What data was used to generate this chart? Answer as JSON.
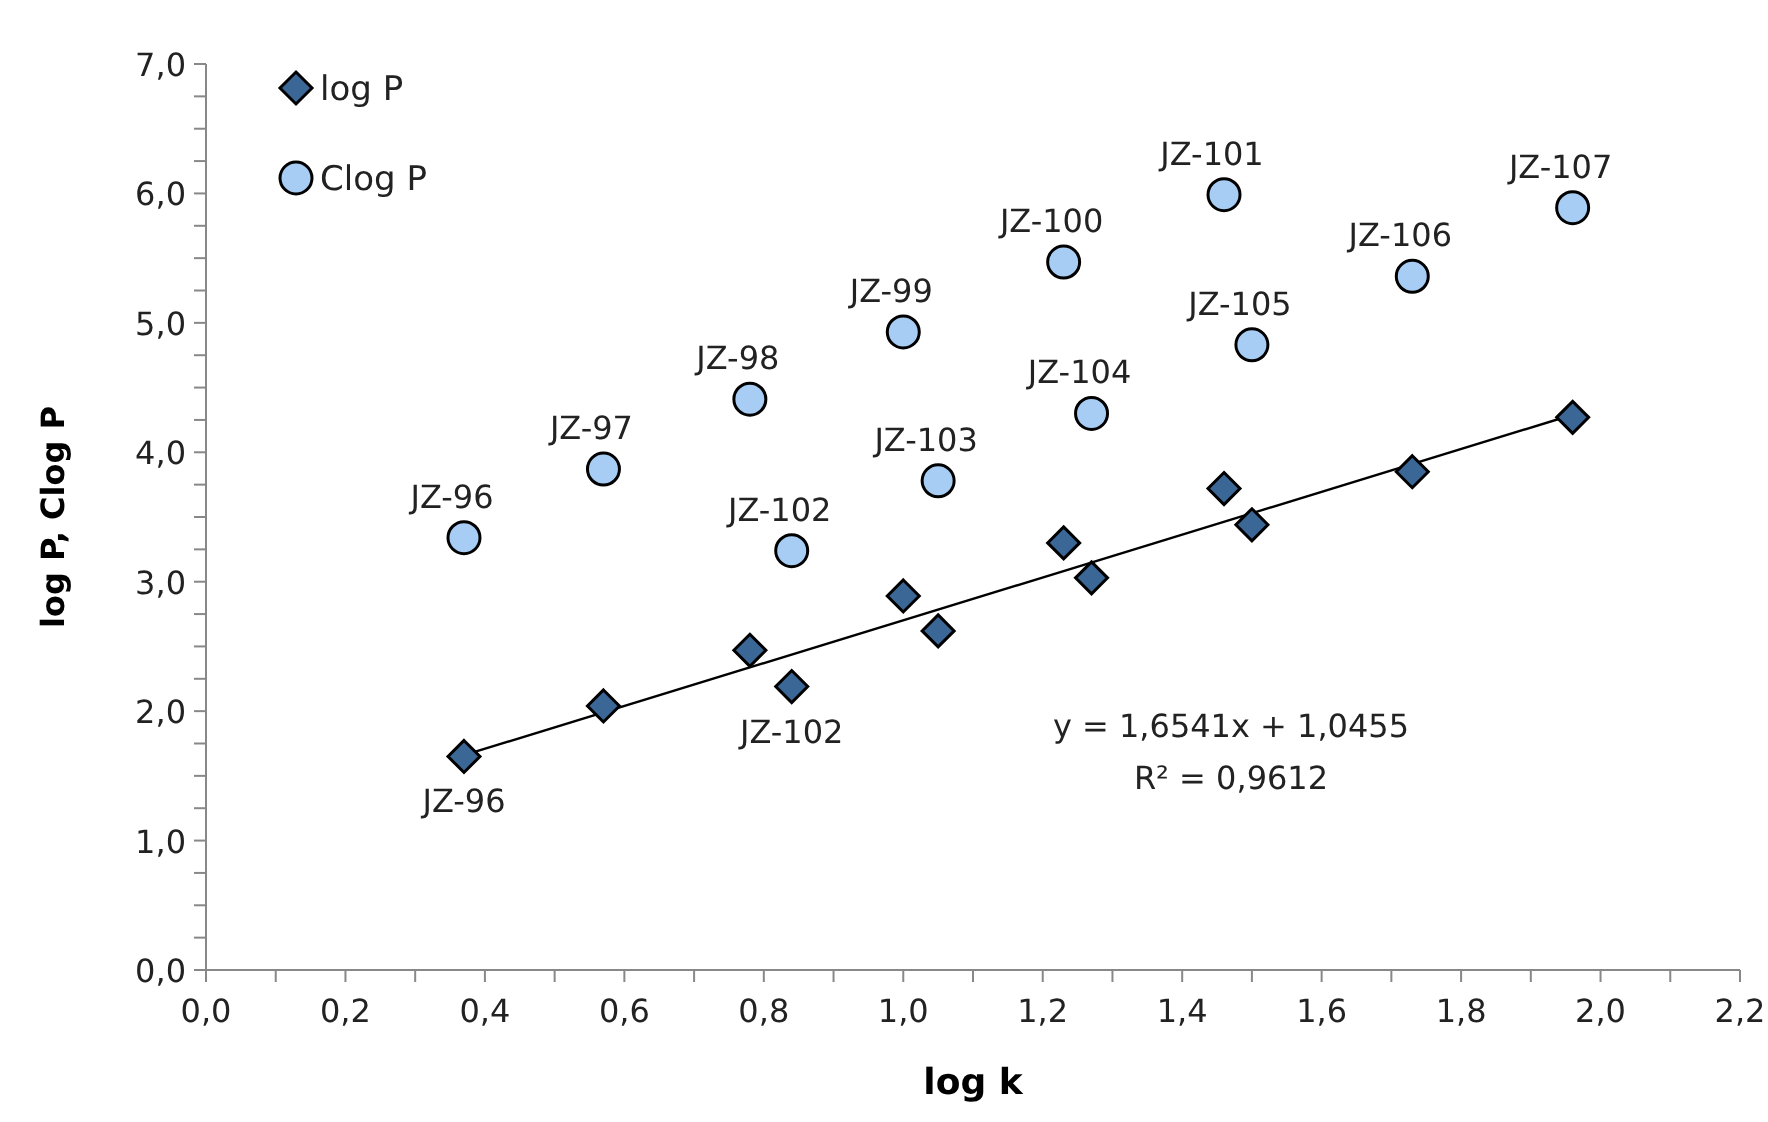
{
  "chart_data": {
    "type": "scatter",
    "xlabel": "log k",
    "ylabel": "log P, Clog P",
    "xlim": [
      0,
      2.2
    ],
    "xticks": [
      {
        "value": 0,
        "label": "0,0"
      },
      {
        "value": 0.1,
        "label": null
      },
      {
        "value": 0.2,
        "label": "0,2"
      },
      {
        "value": 0.3,
        "label": null
      },
      {
        "value": 0.4,
        "label": "0,4"
      },
      {
        "value": 0.5,
        "label": null
      },
      {
        "value": 0.6,
        "label": "0,6"
      },
      {
        "value": 0.7,
        "label": null
      },
      {
        "value": 0.8,
        "label": "0,8"
      },
      {
        "value": 0.9,
        "label": null
      },
      {
        "value": 1,
        "label": "1,0"
      },
      {
        "value": 1.1,
        "label": null
      },
      {
        "value": 1.2,
        "label": "1,2"
      },
      {
        "value": 1.3,
        "label": null
      },
      {
        "value": 1.4,
        "label": "1,4"
      },
      {
        "value": 1.5,
        "label": null
      },
      {
        "value": 1.6,
        "label": "1,6"
      },
      {
        "value": 1.7,
        "label": null
      },
      {
        "value": 1.8,
        "label": "1,8"
      },
      {
        "value": 1.9,
        "label": null
      },
      {
        "value": 2,
        "label": "2,0"
      },
      {
        "value": 2.1,
        "label": null
      },
      {
        "value": 2.2,
        "label": "2,2"
      }
    ],
    "ylim": [
      0,
      7
    ],
    "yticks": [
      {
        "value": 0,
        "label": "0,0"
      },
      {
        "value": 0.25,
        "label": null
      },
      {
        "value": 0.5,
        "label": null
      },
      {
        "value": 0.75,
        "label": null
      },
      {
        "value": 1,
        "label": "1,0"
      },
      {
        "value": 1.25,
        "label": null
      },
      {
        "value": 1.5,
        "label": null
      },
      {
        "value": 1.75,
        "label": null
      },
      {
        "value": 2,
        "label": "2,0"
      },
      {
        "value": 2.25,
        "label": null
      },
      {
        "value": 2.5,
        "label": null
      },
      {
        "value": 2.75,
        "label": null
      },
      {
        "value": 3,
        "label": "3,0"
      },
      {
        "value": 3.25,
        "label": null
      },
      {
        "value": 3.5,
        "label": null
      },
      {
        "value": 3.75,
        "label": null
      },
      {
        "value": 4,
        "label": "4,0"
      },
      {
        "value": 4.25,
        "label": null
      },
      {
        "value": 4.5,
        "label": null
      },
      {
        "value": 4.75,
        "label": null
      },
      {
        "value": 5,
        "label": "5,0"
      },
      {
        "value": 5.25,
        "label": null
      },
      {
        "value": 5.5,
        "label": null
      },
      {
        "value": 5.75,
        "label": null
      },
      {
        "value": 6,
        "label": "6,0"
      },
      {
        "value": 6.25,
        "label": null
      },
      {
        "value": 6.5,
        "label": null
      },
      {
        "value": 6.75,
        "label": null
      },
      {
        "value": 7,
        "label": "7,0"
      }
    ],
    "x": [
      0.37,
      0.57,
      0.78,
      0.84,
      1.0,
      1.05,
      1.23,
      1.27,
      1.46,
      1.5,
      1.73,
      1.96
    ],
    "series": [
      {
        "name": "log P",
        "color": "#3b6797",
        "marker": "diamond",
        "values": [
          1.65,
          2.04,
          2.47,
          2.19,
          2.89,
          2.62,
          3.3,
          3.03,
          3.72,
          3.44,
          3.85,
          4.27
        ]
      },
      {
        "name": "Clog P",
        "color": "#a8cdf5",
        "marker": "circle",
        "values": [
          3.34,
          3.87,
          4.41,
          3.24,
          4.93,
          3.78,
          5.47,
          4.3,
          5.99,
          4.83,
          5.36,
          5.89
        ]
      },
      {
        "type": "line",
        "color": "#000000",
        "marker": "none",
        "x": [
          0.37,
          1.96
        ],
        "values": [
          1.66,
          4.29
        ]
      }
    ],
    "legend": "top left",
    "grid": false,
    "annotations": [
      {
        "text": "JZ-96",
        "x": 0.37,
        "y": 3.34
      },
      {
        "text": "JZ-97",
        "x": 0.57,
        "y": 3.87
      },
      {
        "text": "JZ-98",
        "x": 0.78,
        "y": 4.41
      },
      {
        "text": "JZ-102",
        "x": 0.84,
        "y": 3.24
      },
      {
        "text": "JZ-99",
        "x": 1.0,
        "y": 4.93
      },
      {
        "text": "JZ-103",
        "x": 1.05,
        "y": 3.78
      },
      {
        "text": "JZ-100",
        "x": 1.23,
        "y": 5.47
      },
      {
        "text": "JZ-104",
        "x": 1.27,
        "y": 4.3
      },
      {
        "text": "JZ-101",
        "x": 1.46,
        "y": 5.99
      },
      {
        "text": "JZ-105",
        "x": 1.5,
        "y": 4.83
      },
      {
        "text": "JZ-106",
        "x": 1.73,
        "y": 5.36
      },
      {
        "text": "JZ-107",
        "x": 1.96,
        "y": 5.89
      },
      {
        "text": "JZ-96",
        "x": 0.37,
        "y": 1.65
      },
      {
        "text": "JZ-102",
        "x": 0.84,
        "y": 2.19
      },
      "y = 1,6541x + 1,0455",
      "R² = 0,9612"
    ]
  }
}
